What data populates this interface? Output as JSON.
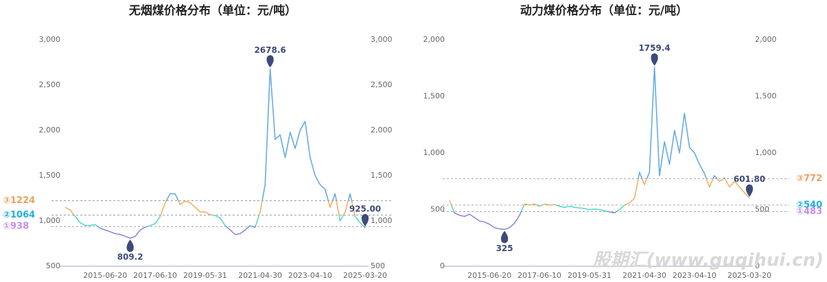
{
  "chart_data": [
    {
      "type": "line",
      "title": "无烟煤价格分布（单位：元/吨）",
      "categories": [
        null,
        null,
        null,
        null,
        null,
        null,
        null,
        null,
        "2015-06-20",
        null,
        null,
        null,
        null,
        null,
        null,
        null,
        null,
        null,
        "2017-06-10",
        null,
        null,
        null,
        null,
        null,
        null,
        null,
        null,
        null,
        "2019-05-31",
        null,
        null,
        null,
        null,
        null,
        null,
        null,
        null,
        null,
        null,
        "2021-04-30",
        null,
        null,
        null,
        null,
        null,
        null,
        null,
        null,
        null,
        "2023-04-10",
        null,
        null,
        null,
        null,
        null,
        null,
        null,
        null,
        null,
        null,
        "2025-03-20"
      ],
      "values": [
        1150,
        1120,
        1050,
        980,
        950,
        950,
        960,
        920,
        900,
        880,
        860,
        850,
        830,
        809.2,
        830,
        900,
        930,
        950,
        970,
        1050,
        1200,
        1300,
        1300,
        1180,
        1220,
        1200,
        1150,
        1100,
        1100,
        1070,
        1060,
        1030,
        950,
        900,
        850,
        860,
        900,
        950,
        930,
        1100,
        1400,
        2678.6,
        1900,
        1950,
        1700,
        1980,
        1800,
        2000,
        2100,
        1700,
        1500,
        1400,
        1350,
        1150,
        1300,
        1000,
        1100,
        1300,
        1050,
        980,
        925
      ],
      "value_labels": [
        null,
        null,
        null,
        null,
        null,
        null,
        null,
        null,
        null,
        null,
        null,
        null,
        null,
        "809.2",
        null,
        null,
        null,
        null,
        null,
        null,
        null,
        null,
        null,
        null,
        null,
        null,
        null,
        null,
        null,
        null,
        null,
        null,
        null,
        null,
        null,
        null,
        null,
        null,
        null,
        null,
        null,
        "2678.6",
        null,
        null,
        null,
        null,
        null,
        null,
        null,
        null,
        null,
        null,
        null,
        null,
        null,
        null,
        null,
        null,
        null,
        null,
        "925.00"
      ],
      "band_colors": [
        "#8f86e0",
        "#5ad8c8",
        "#f2b066",
        "#66aae6"
      ],
      "marker_color": "#3d4a7a",
      "reference_lines": [
        {
          "value": 1224,
          "label": "③1224",
          "color": "#f0a060"
        },
        {
          "value": 1064,
          "label": "②1064",
          "color": "#1ab0e0"
        },
        {
          "value": 938,
          "label": "①938",
          "color": "#c48cf0"
        }
      ],
      "ylim": [
        500,
        3000
      ],
      "yticks": [
        500,
        {
          "value": 1000,
          "label": "1,000"
        },
        {
          "value": 1500,
          "label": "1,500"
        },
        {
          "value": 2000,
          "label": "2,000"
        },
        {
          "value": 2500,
          "label": "2,500"
        },
        {
          "value": 3000,
          "label": "3,000"
        }
      ],
      "y2lim": [
        500,
        3000
      ],
      "y2ticks": [
        500,
        {
          "value": 1000,
          "label": "1,000"
        },
        {
          "value": 1500,
          "label": "1,500"
        },
        {
          "value": 2000,
          "label": "2,000"
        },
        {
          "value": 2500,
          "label": "2,500"
        },
        {
          "value": 3000,
          "label": "3,000"
        }
      ]
    },
    {
      "type": "line",
      "title": "动力煤价格分布（单位：元/吨）",
      "categories": [
        null,
        null,
        null,
        null,
        null,
        null,
        null,
        null,
        "2015-06-20",
        null,
        null,
        null,
        null,
        null,
        null,
        null,
        null,
        null,
        "2017-06-10",
        null,
        null,
        null,
        null,
        null,
        null,
        null,
        null,
        null,
        "2019-05-31",
        null,
        null,
        null,
        null,
        null,
        null,
        null,
        null,
        null,
        null,
        "2021-04-30",
        null,
        null,
        null,
        null,
        null,
        null,
        null,
        null,
        null,
        "2023-04-10",
        null,
        null,
        null,
        null,
        null,
        null,
        null,
        null,
        null,
        null,
        "2025-03-20"
      ],
      "values": [
        580,
        470,
        450,
        440,
        460,
        430,
        400,
        390,
        370,
        340,
        330,
        325,
        340,
        380,
        450,
        550,
        540,
        550,
        530,
        550,
        540,
        545,
        530,
        520,
        530,
        520,
        515,
        510,
        500,
        505,
        500,
        490,
        480,
        470,
        500,
        540,
        560,
        600,
        830,
        720,
        830,
        1759.4,
        800,
        1100,
        900,
        1200,
        1000,
        1350,
        1050,
        1000,
        900,
        820,
        700,
        800,
        750,
        780,
        700,
        750,
        700,
        650,
        601.8
      ],
      "value_labels": [
        null,
        null,
        null,
        null,
        null,
        null,
        null,
        null,
        null,
        null,
        null,
        "325",
        null,
        null,
        null,
        null,
        null,
        null,
        null,
        null,
        null,
        null,
        null,
        null,
        null,
        null,
        null,
        null,
        null,
        null,
        null,
        null,
        null,
        null,
        null,
        null,
        null,
        null,
        null,
        null,
        null,
        "1759.4",
        null,
        null,
        null,
        null,
        null,
        null,
        null,
        null,
        null,
        null,
        null,
        null,
        null,
        null,
        null,
        null,
        null,
        null,
        "601.80"
      ],
      "band_colors": [
        "#8f86e0",
        "#5ad8c8",
        "#f2b066",
        "#66aae6"
      ],
      "marker_color": "#3d4a7a",
      "reference_lines": [
        {
          "value": 772,
          "label": "③772",
          "color": "#f0a060"
        },
        {
          "value": 540,
          "label": "②540",
          "color": "#1ab0e0"
        },
        {
          "value": 483,
          "label": "①483",
          "color": "#c48cf0"
        }
      ],
      "ylim": [
        0,
        2000
      ],
      "yticks": [
        0,
        500,
        {
          "value": 1000,
          "label": "1,000"
        },
        {
          "value": 1500,
          "label": "1,500"
        },
        {
          "value": 2000,
          "label": "2,000"
        }
      ],
      "y2lim": [
        0,
        2000
      ],
      "y2ticks": [
        0,
        500,
        {
          "value": 1000,
          "label": "1,000"
        },
        {
          "value": 1500,
          "label": "1,500"
        },
        {
          "value": 2000,
          "label": "2,000"
        }
      ]
    }
  ],
  "watermark": "股期汇(www.guqihui.cn)"
}
